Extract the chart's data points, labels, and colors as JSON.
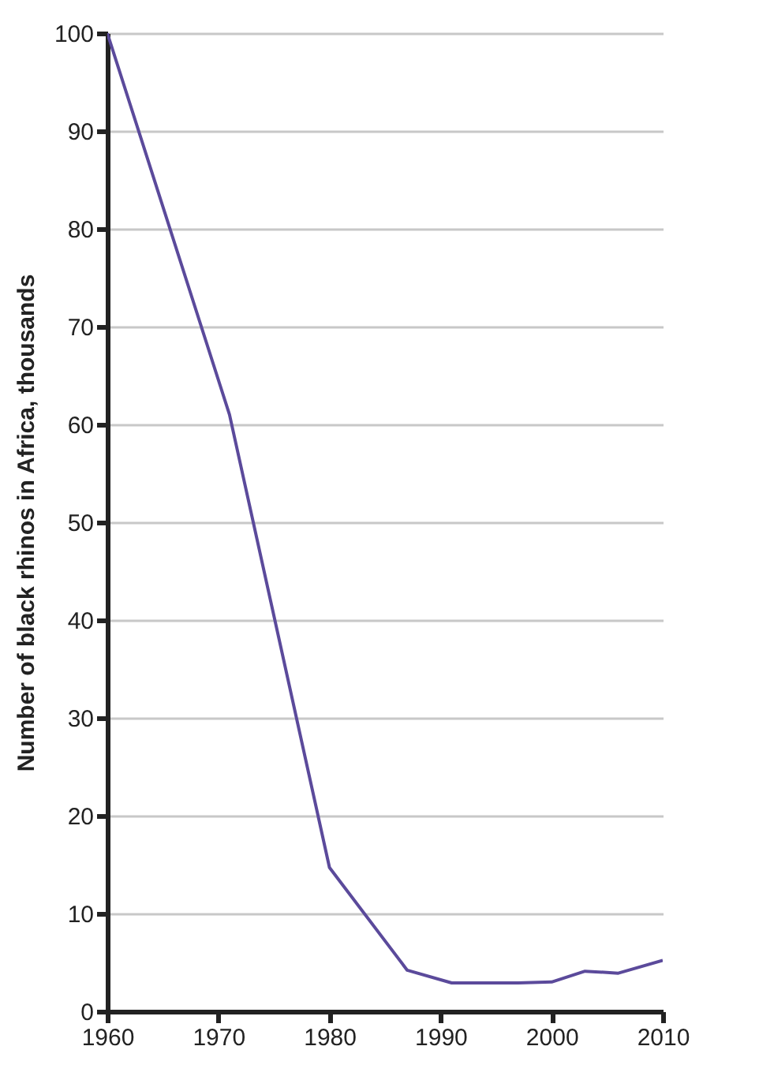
{
  "chart_data": {
    "type": "line",
    "ylabel": "Number of black rhinos in Africa, thousands",
    "x": [
      1960,
      1971,
      1980,
      1987,
      1991,
      1997,
      2000,
      2003,
      2006,
      2010
    ],
    "series": [
      {
        "color": "#5b4a9b",
        "values": [
          100,
          61,
          14.7,
          4.2,
          2.9,
          2.9,
          3.0,
          4.1,
          3.9,
          5.2
        ]
      }
    ],
    "xlim": [
      1960,
      2010
    ],
    "xticks": [
      1960,
      1970,
      1980,
      1990,
      2000,
      2010
    ],
    "ylim": [
      0,
      100
    ],
    "yticks": [
      0,
      10,
      20,
      30,
      40,
      50,
      60,
      70,
      80,
      90,
      100
    ],
    "grid": "y",
    "marker": "none",
    "line_style": "solid"
  }
}
